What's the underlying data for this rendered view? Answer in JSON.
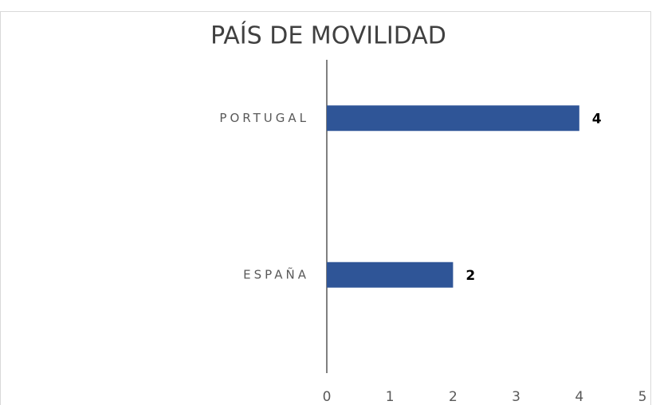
{
  "chart_data": {
    "type": "bar",
    "orientation": "horizontal",
    "title": "PAÍS DE MOVILIDAD",
    "categories": [
      "PORTUGAL",
      "ESPAÑA"
    ],
    "values": [
      4,
      2
    ],
    "color": "#2f5597",
    "xlim": [
      0,
      5
    ],
    "xticks": [
      0,
      1,
      2,
      3,
      4,
      5
    ],
    "grid": false
  }
}
